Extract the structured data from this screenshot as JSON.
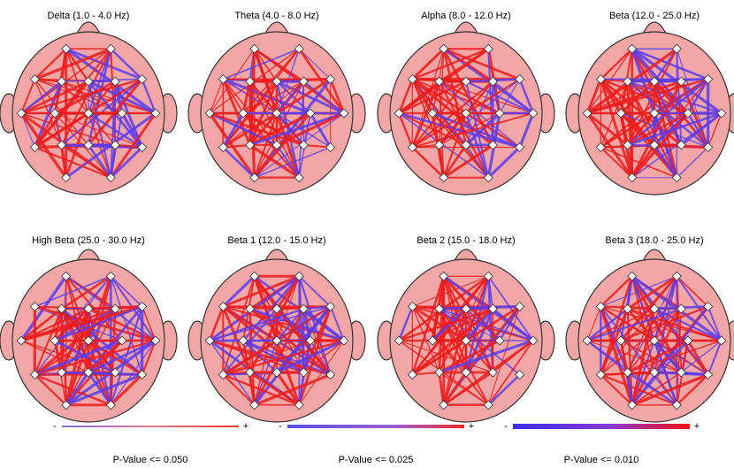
{
  "panels": [
    {
      "title": "Delta (1.0 - 4.0 Hz)"
    },
    {
      "title": "Theta (4.0 - 8.0 Hz)"
    },
    {
      "title": "Alpha (8.0 - 12.0 Hz)"
    },
    {
      "title": "Beta (12.0 - 25.0 Hz)"
    },
    {
      "title": "High Beta (25.0 - 30.0 Hz)"
    },
    {
      "title": "Beta 1 (12.0 - 15.0 Hz)"
    },
    {
      "title": "Beta 2 (15.0 - 18.0 Hz)"
    },
    {
      "title": "Beta 3 (18.0 - 25.0 Hz)"
    }
  ],
  "legend": {
    "minus": "-",
    "plus": "+",
    "items": [
      {
        "label": "P-Value <= 0.050"
      },
      {
        "label": "P-Value <= 0.025"
      },
      {
        "label": "P-Value <= 0.010"
      }
    ]
  }
}
